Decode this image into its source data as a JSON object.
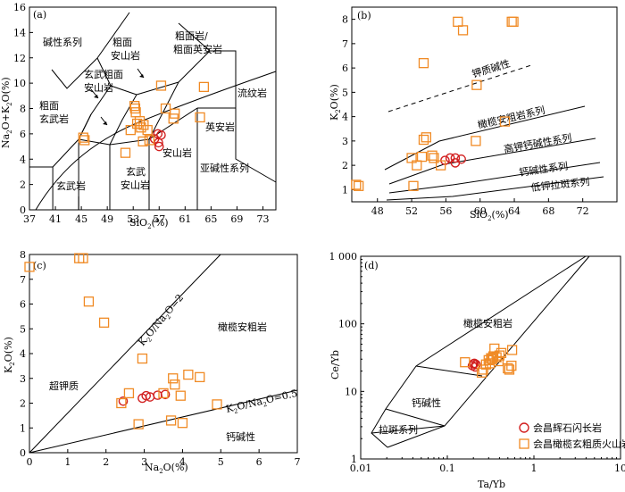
{
  "colors": {
    "volcanic": "#f08a24",
    "diorite": "#d22020",
    "axis": "#000000"
  },
  "chart_data": [
    {
      "type": "scatter",
      "panel_label": "(a)",
      "xlabel": "SiO2(%)",
      "ylabel": "Na2O+K2O(%)",
      "xlim": [
        37,
        75
      ],
      "ylim": [
        0,
        16
      ],
      "xticks": [
        "37",
        "41",
        "45",
        "49",
        "53",
        "57",
        "61",
        "65",
        "69",
        "73"
      ],
      "yticks": [
        "0",
        "2",
        "4",
        "6",
        "8",
        "10",
        "12",
        "14",
        "16"
      ],
      "field_labels": [
        "碱性系列",
        "粗面安山岩",
        "粗面岩/粗面英安岩",
        "玄武粗面安山岩",
        "粗面玄武岩",
        "流纹岩",
        "英安岩",
        "安山岩",
        "玄武安山岩",
        "亚碱性系列",
        "玄武岩"
      ],
      "series": [
        {
          "name": "会昌辉石闪长岩",
          "marker": "circle",
          "points": [
            [
              56.3,
              5.6
            ],
            [
              56.9,
              5.3
            ],
            [
              57.3,
              5.9
            ],
            [
              56.8,
              6.0
            ],
            [
              57.0,
              5.0
            ]
          ]
        },
        {
          "name": "会昌橄榄玄粗质火山岩",
          "marker": "square",
          "points": [
            [
              45.3,
              5.7
            ],
            [
              45.5,
              5.5
            ],
            [
              51.8,
              4.5
            ],
            [
              52.6,
              6.3
            ],
            [
              53.2,
              8.2
            ],
            [
              53.3,
              8.0
            ],
            [
              53.4,
              7.7
            ],
            [
              53.6,
              6.8
            ],
            [
              54.2,
              6.5
            ],
            [
              54.0,
              7.0
            ],
            [
              54.6,
              6.7
            ],
            [
              54.5,
              5.4
            ],
            [
              55.5,
              5.5
            ],
            [
              55.2,
              6.3
            ],
            [
              57.3,
              9.8
            ],
            [
              58.0,
              8.0
            ],
            [
              59.4,
              7.6
            ],
            [
              59.2,
              7.2
            ],
            [
              63.3,
              7.3
            ],
            [
              63.9,
              9.7
            ]
          ]
        }
      ]
    },
    {
      "type": "scatter",
      "panel_label": "(b)",
      "xlabel": "SiO2(%)",
      "ylabel": "K2O(%)",
      "xlim": [
        45,
        76
      ],
      "ylim": [
        0.5,
        8.5
      ],
      "xticks": [
        "48",
        "52",
        "56",
        "60",
        "64",
        "68",
        "72"
      ],
      "yticks": [
        "1",
        "2",
        "3",
        "4",
        "5",
        "6",
        "7",
        "8"
      ],
      "field_labels": [
        "钾质碱性",
        "橄榄安粗岩系列",
        "高钾钙碱性系列",
        "钙碱性系列",
        "低钾拉斑系列"
      ],
      "series": [
        {
          "name": "会昌辉石闪长岩",
          "marker": "circle",
          "points": [
            [
              55.9,
              2.2
            ],
            [
              56.5,
              2.3
            ],
            [
              57.1,
              2.3
            ],
            [
              57.1,
              2.1
            ],
            [
              57.8,
              2.25
            ]
          ]
        },
        {
          "name": "会昌橄榄玄粗质火山岩",
          "marker": "square",
          "points": [
            [
              45.5,
              1.2
            ],
            [
              45.8,
              1.15
            ],
            [
              52.2,
              1.15
            ],
            [
              52.0,
              2.3
            ],
            [
              52.6,
              2.0
            ],
            [
              53.2,
              2.35
            ],
            [
              53.4,
              3.05
            ],
            [
              53.7,
              3.15
            ],
            [
              54.4,
              2.4
            ],
            [
              54.6,
              2.3
            ],
            [
              53.4,
              6.2
            ],
            [
              55.4,
              2.0
            ],
            [
              57.4,
              7.9
            ],
            [
              58.0,
              7.55
            ],
            [
              59.5,
              3.0
            ],
            [
              59.6,
              5.3
            ],
            [
              62.9,
              3.8
            ],
            [
              63.7,
              7.9
            ],
            [
              63.9,
              7.9
            ]
          ]
        }
      ]
    },
    {
      "type": "scatter",
      "panel_label": "(c)",
      "xlabel": "Na2O(%)",
      "ylabel": "K2O(%)",
      "xlim": [
        0,
        7
      ],
      "ylim": [
        0,
        8
      ],
      "xticks": [
        "0",
        "1",
        "2",
        "3",
        "4",
        "5",
        "6",
        "7"
      ],
      "yticks": [
        "0",
        "1",
        "2",
        "3",
        "4",
        "5",
        "6",
        "7",
        "8"
      ],
      "field_labels": [
        "橄榄安粗岩",
        "超钾质",
        "钙碱性"
      ],
      "line_labels": [
        "K2O/Na2O=2",
        "K2O/Na2O=0.5"
      ],
      "series": [
        {
          "name": "会昌辉石闪长岩",
          "marker": "circle",
          "points": [
            [
              2.45,
              2.08
            ],
            [
              2.95,
              2.2
            ],
            [
              3.05,
              2.3
            ],
            [
              3.15,
              2.25
            ],
            [
              3.35,
              2.32
            ],
            [
              3.55,
              2.35
            ]
          ]
        },
        {
          "name": "会昌橄榄玄粗质火山岩",
          "marker": "square",
          "points": [
            [
              0.0,
              7.5
            ],
            [
              1.3,
              7.85
            ],
            [
              1.4,
              7.85
            ],
            [
              1.55,
              6.1
            ],
            [
              1.95,
              5.25
            ],
            [
              2.4,
              2.0
            ],
            [
              2.6,
              2.4
            ],
            [
              2.85,
              1.15
            ],
            [
              2.95,
              3.8
            ],
            [
              3.5,
              2.4
            ],
            [
              3.7,
              1.3
            ],
            [
              3.75,
              3.0
            ],
            [
              3.8,
              2.75
            ],
            [
              3.95,
              2.3
            ],
            [
              4.0,
              1.2
            ],
            [
              4.15,
              3.15
            ],
            [
              4.45,
              3.05
            ],
            [
              4.9,
              1.95
            ]
          ]
        }
      ]
    },
    {
      "type": "scatter",
      "panel_label": "(d)",
      "xlabel": "Ta/Yb",
      "ylabel": "Ce/Yb",
      "xscale": "log",
      "yscale": "log",
      "xlim": [
        0.01,
        10
      ],
      "ylim": [
        1,
        1000
      ],
      "xticks": [
        "0.01",
        "0.1",
        "1",
        "10"
      ],
      "yticks": [
        "1",
        "10",
        "100",
        "1 000"
      ],
      "field_labels": [
        "橄榄安粗岩",
        "钙碱性",
        "拉斑系列"
      ],
      "legend": {
        "position": "bottom-right",
        "entries": [
          "会昌辉石闪长岩",
          "会昌橄榄玄粗质火山岩"
        ]
      },
      "series": [
        {
          "name": "会昌辉石闪长岩",
          "marker": "circle",
          "points": [
            [
              0.195,
              24
            ],
            [
              0.205,
              26
            ],
            [
              0.215,
              25
            ],
            [
              0.21,
              23
            ],
            [
              0.2,
              25.5
            ]
          ]
        },
        {
          "name": "会昌橄榄玄粗质火山岩",
          "marker": "square",
          "points": [
            [
              0.16,
              27
            ],
            [
              0.25,
              19
            ],
            [
              0.26,
              21
            ],
            [
              0.28,
              25
            ],
            [
              0.3,
              29
            ],
            [
              0.31,
              26
            ],
            [
              0.32,
              31
            ],
            [
              0.33,
              30
            ],
            [
              0.34,
              33
            ],
            [
              0.35,
              43
            ],
            [
              0.37,
              32
            ],
            [
              0.39,
              28
            ],
            [
              0.4,
              34
            ],
            [
              0.42,
              37
            ],
            [
              0.5,
              22
            ],
            [
              0.52,
              21
            ],
            [
              0.55,
              24
            ],
            [
              0.56,
              41
            ]
          ]
        }
      ]
    }
  ]
}
